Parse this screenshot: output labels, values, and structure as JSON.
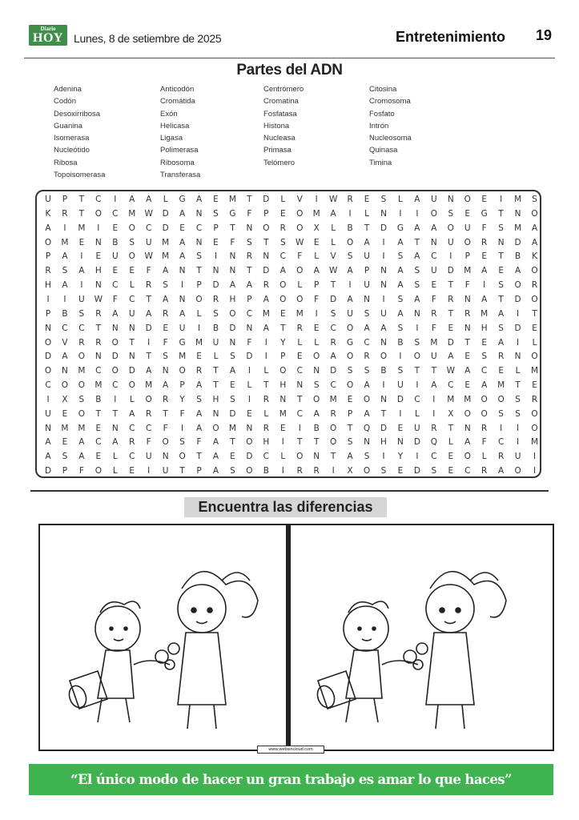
{
  "header": {
    "logo_small": "Diario",
    "logo_big": "HOY",
    "date": "Lunes, 8 de setiembre de  2025",
    "section": "Entretenimiento",
    "page_number": "19"
  },
  "wordsearch": {
    "title": "Partes del ADN",
    "words": [
      [
        "Adenina",
        "Codón",
        "Desoxirribosa",
        "Guanina",
        "Isomerasa",
        "Nucleótido",
        "Ribosa",
        "Topoisomerasa"
      ],
      [
        "Anticodón",
        "Cromátida",
        "Exón",
        "Helicasa",
        "Ligasa",
        "Polimerasa",
        "Ribosoma",
        "Transferasa"
      ],
      [
        "Centrómero",
        "Cromatina",
        "Fosfatasa",
        "Histona",
        "Nucleasa",
        "Primasa",
        "Telómero"
      ],
      [
        "Citosina",
        "Cromosoma",
        "Fosfato",
        "Intrón",
        "Nucleosoma",
        "Quinasa",
        "Timina"
      ]
    ],
    "grid": [
      "UPTCIAALGAEMTDLVIWRESLAUNOEIMS",
      "KRTOCMWDANSGFPEOMAILNIIOSEGTNO",
      "AIMIEOCDECPTNOROXLBTDGAAOUFSMA",
      "OMENBSUMANEFSTSWELOAIATNUORNDA",
      "PAIEUOWMASINRNCFLVSUISACIPETBK",
      "RSAHEEFANTNNTDAOAWAPNASUDMAEAO",
      "HAINCLRSIPDAAROLPTIUNASETFISOR",
      "IIUWFCTANORHPAOOFDANISAFRNATDO",
      "PBSRAUARALSOCMEMISUSUANRTRMAIT",
      "NCCTNNDEUIBDNATRECOAASIFENHSDE",
      "OVRROTIFGMUNFIYLLRGCNBSMDTEAIL",
      "DAONDNTSMELSDIPEOAOROIOUAESRNO",
      "ONMCODANORTAILOCNDSSBSTTWACELM",
      "COOMCOMAPATELTHNSCOAIUIACEAMTE",
      "IXSBILORYSHSIRNTOMEONDCIMMOOSR",
      "UEOTTARTFANDELMCARPATILIXOOSSO",
      "NMMENCCFIAOMNREIBOTQDEURTNRIIO",
      "AEACARFOSFATOHITTOSNHNDQLAFCIM",
      "ASAELCUNOTAEDCLONTASIYICEOLRUI",
      "DPFOLEIUTPASOBIRRIXOSEDSECRAOI"
    ]
  },
  "differences": {
    "title": "Encuentra las diferencias",
    "credit": "www.websincloud.com"
  },
  "quote": "“El único modo de hacer un gran trabajo es amar lo que haces”",
  "colors": {
    "brand_green": "#3f8f4a",
    "banner_green": "#3fb34f"
  }
}
